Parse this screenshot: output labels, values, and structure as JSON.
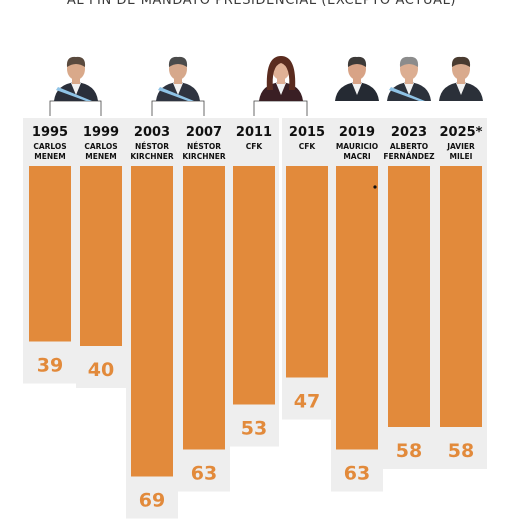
{
  "title": "AL FIN DE MANDATO PRESIDENCIAL (EXCEPTO ACTUAL)",
  "colors": {
    "bar": "#e28a3b",
    "panel": "#eeeeee",
    "value": "#e28a3b"
  },
  "portraits": [
    "carlos-menem",
    "nestor-kirchner",
    "cfk",
    "mauricio-macri",
    "alberto-fernandez",
    "javier-milei"
  ],
  "chart_data": {
    "type": "bar",
    "title": "AL FIN DE MANDATO PRESIDENCIAL (EXCEPTO ACTUAL)",
    "xlabel": "",
    "ylabel": "",
    "ylim": [
      0,
      75
    ],
    "grid": false,
    "categories": [
      {
        "year": "1995",
        "name": [
          "CARLOS",
          "MENEM"
        ]
      },
      {
        "year": "1999",
        "name": [
          "CARLOS",
          "MENEM"
        ]
      },
      {
        "year": "2003",
        "name": [
          "NÉSTOR",
          "KIRCHNER"
        ]
      },
      {
        "year": "2007",
        "name": [
          "NÉSTOR",
          "KIRCHNER"
        ]
      },
      {
        "year": "2011",
        "name": [
          "CFK"
        ]
      },
      {
        "year": "2015",
        "name": [
          "CFK"
        ]
      },
      {
        "year": "2019",
        "name": [
          "MAURICIO",
          "MACRI"
        ]
      },
      {
        "year": "2023",
        "name": [
          "ALBERTO",
          "FERNÁNDEZ"
        ]
      },
      {
        "year": "2025*",
        "name": [
          "JAVIER",
          "MILEI"
        ]
      }
    ],
    "values": [
      39,
      40,
      69,
      63,
      53,
      47,
      63,
      58,
      58
    ]
  }
}
